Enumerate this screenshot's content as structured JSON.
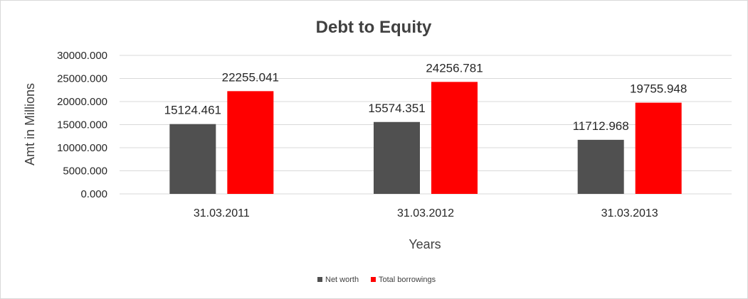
{
  "chart_data": {
    "type": "bar",
    "title": "Debt to Equity",
    "xlabel": "Years",
    "ylabel": "Amt in Millions",
    "categories": [
      "31.03.2011",
      "31.03.2012",
      "31.03.2013"
    ],
    "series": [
      {
        "name": "Net worth",
        "color": "#505050",
        "values": [
          15124.461,
          15574.351,
          11712.968
        ],
        "labels": [
          "15124.461",
          "15574.351",
          "11712.968"
        ]
      },
      {
        "name": "Total borrowings",
        "color": "#ff0000",
        "values": [
          22255.041,
          24256.781,
          19755.948
        ],
        "labels": [
          "22255.041",
          "24256.781",
          "19755.948"
        ]
      }
    ],
    "ylim": [
      0,
      30000
    ],
    "yticks": [
      0,
      5000,
      10000,
      15000,
      20000,
      25000,
      30000
    ],
    "ytick_labels": [
      "0.000",
      "5000.000",
      "10000.000",
      "15000.000",
      "20000.000",
      "25000.000",
      "30000.000"
    ],
    "grid": true,
    "legend": "bottom"
  }
}
